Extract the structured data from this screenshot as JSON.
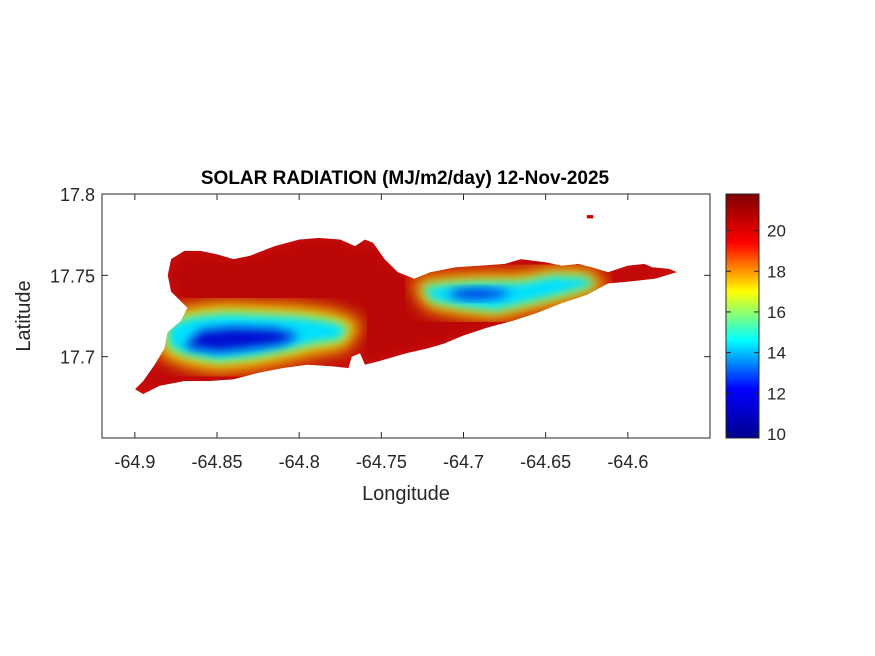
{
  "chart_data": {
    "type": "heatmap",
    "title": "SOLAR RADIATION (MJ/m2/day) 12-Nov-2025",
    "xlabel": "Longitude",
    "ylabel": "Latitude",
    "xlim": [
      -64.92,
      -64.55
    ],
    "ylim": [
      17.65,
      17.8
    ],
    "xticks": [
      -64.9,
      -64.85,
      -64.8,
      -64.75,
      -64.7,
      -64.65,
      -64.6
    ],
    "xtick_labels": [
      "-64.9",
      "-64.85",
      "-64.8",
      "-64.75",
      "-64.7",
      "-64.65",
      "-64.6"
    ],
    "yticks": [
      17.7,
      17.75,
      17.8
    ],
    "ytick_labels": [
      "17.7",
      "17.75",
      "17.8"
    ],
    "colorbar": {
      "colormap": "jet",
      "range": [
        9.8,
        21.8
      ],
      "ticks": [
        10,
        12,
        14,
        16,
        18,
        20
      ],
      "tick_labels": [
        "10",
        "12",
        "14",
        "16",
        "18",
        "20"
      ]
    },
    "colormap_stops": [
      "#00008f",
      "#0000ff",
      "#00ffff",
      "#ffff00",
      "#ff0000",
      "#800000"
    ],
    "island_outline": [
      [
        -64.9,
        17.68
      ],
      [
        -64.895,
        17.685
      ],
      [
        -64.888,
        17.695
      ],
      [
        -64.882,
        17.705
      ],
      [
        -64.88,
        17.715
      ],
      [
        -64.872,
        17.722
      ],
      [
        -64.868,
        17.73
      ],
      [
        -64.878,
        17.74
      ],
      [
        -64.88,
        17.75
      ],
      [
        -64.878,
        17.76
      ],
      [
        -64.87,
        17.765
      ],
      [
        -64.86,
        17.765
      ],
      [
        -64.85,
        17.763
      ],
      [
        -64.84,
        17.76
      ],
      [
        -64.83,
        17.762
      ],
      [
        -64.815,
        17.768
      ],
      [
        -64.8,
        17.772
      ],
      [
        -64.788,
        17.773
      ],
      [
        -64.775,
        17.772
      ],
      [
        -64.766,
        17.768
      ],
      [
        -64.76,
        17.772
      ],
      [
        -64.755,
        17.77
      ],
      [
        -64.748,
        17.76
      ],
      [
        -64.74,
        17.752
      ],
      [
        -64.73,
        17.748
      ],
      [
        -64.72,
        17.752
      ],
      [
        -64.705,
        17.755
      ],
      [
        -64.69,
        17.756
      ],
      [
        -64.675,
        17.757
      ],
      [
        -64.665,
        17.76
      ],
      [
        -64.65,
        17.758
      ],
      [
        -64.64,
        17.756
      ],
      [
        -64.63,
        17.757
      ],
      [
        -64.622,
        17.755
      ],
      [
        -64.612,
        17.752
      ],
      [
        -64.6,
        17.756
      ],
      [
        -64.59,
        17.757
      ],
      [
        -64.585,
        17.755
      ],
      [
        -64.575,
        17.754
      ],
      [
        -64.57,
        17.752
      ],
      [
        -64.583,
        17.748
      ],
      [
        -64.6,
        17.746
      ],
      [
        -64.612,
        17.745
      ],
      [
        -64.625,
        17.738
      ],
      [
        -64.64,
        17.733
      ],
      [
        -64.655,
        17.727
      ],
      [
        -64.67,
        17.722
      ],
      [
        -64.685,
        17.718
      ],
      [
        -64.7,
        17.713
      ],
      [
        -64.712,
        17.708
      ],
      [
        -64.722,
        17.705
      ],
      [
        -64.735,
        17.702
      ],
      [
        -64.742,
        17.7
      ],
      [
        -64.752,
        17.697
      ],
      [
        -64.76,
        17.695
      ],
      [
        -64.763,
        17.702
      ],
      [
        -64.768,
        17.7
      ],
      [
        -64.77,
        17.693
      ],
      [
        -64.78,
        17.694
      ],
      [
        -64.795,
        17.695
      ],
      [
        -64.81,
        17.693
      ],
      [
        -64.825,
        17.69
      ],
      [
        -64.84,
        17.686
      ],
      [
        -64.855,
        17.685
      ],
      [
        -64.87,
        17.685
      ],
      [
        -64.885,
        17.682
      ],
      [
        -64.895,
        17.677
      ]
    ],
    "islet": [
      [
        -64.625,
        17.787
      ],
      [
        -64.621,
        17.787
      ],
      [
        -64.621,
        17.785
      ],
      [
        -64.625,
        17.785
      ]
    ],
    "low_band_1": [
      [
        -64.88,
        17.706
      ],
      [
        -64.87,
        17.701
      ],
      [
        -64.85,
        17.697
      ],
      [
        -64.83,
        17.699
      ],
      [
        -64.81,
        17.703
      ],
      [
        -64.79,
        17.708
      ],
      [
        -64.775,
        17.71
      ],
      [
        -64.77,
        17.718
      ],
      [
        -64.78,
        17.722
      ],
      [
        -64.8,
        17.725
      ],
      [
        -64.82,
        17.726
      ],
      [
        -64.845,
        17.727
      ],
      [
        -64.865,
        17.725
      ],
      [
        -64.88,
        17.72
      ]
    ],
    "low_band_2": [
      [
        -64.72,
        17.734
      ],
      [
        -64.7,
        17.73
      ],
      [
        -64.68,
        17.728
      ],
      [
        -64.66,
        17.733
      ],
      [
        -64.64,
        17.738
      ],
      [
        -64.62,
        17.744
      ],
      [
        -64.625,
        17.749
      ],
      [
        -64.645,
        17.75
      ],
      [
        -64.665,
        17.746
      ],
      [
        -64.69,
        17.746
      ],
      [
        -64.71,
        17.745
      ],
      [
        -64.725,
        17.743
      ]
    ],
    "low_core_1": [
      [
        -64.87,
        17.706
      ],
      [
        -64.85,
        17.703
      ],
      [
        -64.83,
        17.705
      ],
      [
        -64.81,
        17.708
      ],
      [
        -64.8,
        17.713
      ],
      [
        -64.815,
        17.717
      ],
      [
        -64.84,
        17.718
      ],
      [
        -64.86,
        17.716
      ]
    ],
    "low_core_2": [
      [
        -64.71,
        17.737
      ],
      [
        -64.695,
        17.735
      ],
      [
        -64.68,
        17.736
      ],
      [
        -64.67,
        17.74
      ],
      [
        -64.69,
        17.742
      ],
      [
        -64.705,
        17.741
      ]
    ]
  }
}
